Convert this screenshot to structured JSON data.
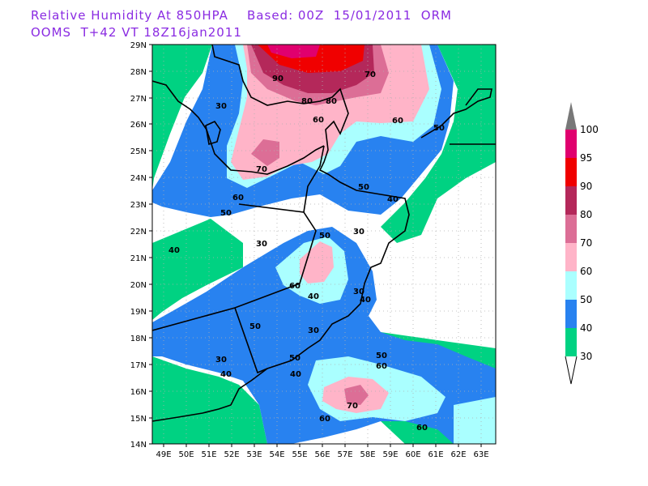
{
  "header": {
    "line1": "Relative Humidity At 850HPA    Based: 00Z  15/01/2011  ORM",
    "line2": "OOMS  T+42 VT 18Z16jan2011"
  },
  "axes": {
    "lat_labels": [
      "29N",
      "28N",
      "27N",
      "26N",
      "25N",
      "24N",
      "23N",
      "22N",
      "21N",
      "20N",
      "19N",
      "18N",
      "17N",
      "16N",
      "15N",
      "14N"
    ],
    "lon_labels": [
      "49E",
      "50E",
      "51E",
      "52E",
      "53E",
      "54E",
      "55E",
      "56E",
      "57E",
      "58E",
      "59E",
      "60E",
      "61E",
      "62E",
      "63E"
    ]
  },
  "legend": {
    "levels": [
      "100",
      "95",
      "90",
      "80",
      "70",
      "60",
      "50",
      "40",
      "30"
    ],
    "colors": [
      "#787878",
      "#e0006e",
      "#f00000",
      "#b4285a",
      "#dc6e96",
      "#ffb4c8",
      "#aaffff",
      "#2882f0",
      "#00d282"
    ]
  },
  "contour_labels": [
    "90",
    "70",
    "80",
    "30",
    "60",
    "60",
    "80",
    "50",
    "70",
    "50",
    "40",
    "60",
    "50",
    "30",
    "40",
    "50",
    "30",
    "30",
    "40",
    "60",
    "40",
    "50",
    "30",
    "50",
    "50",
    "60",
    "30",
    "40",
    "40",
    "70",
    "60",
    "60"
  ]
}
